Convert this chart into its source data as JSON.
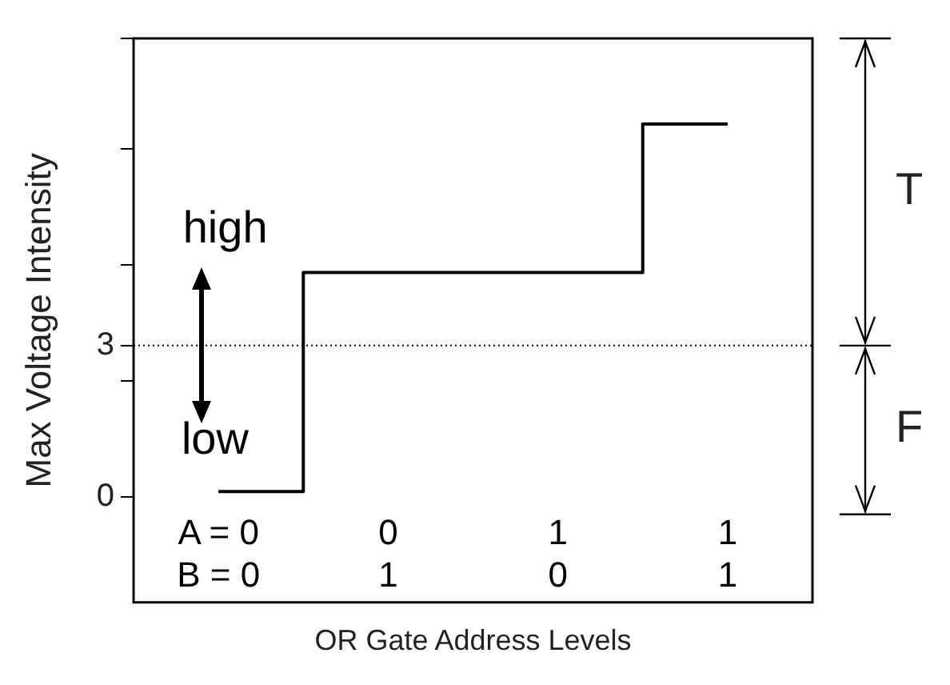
{
  "chart_data": {
    "type": "step",
    "xlabel": "OR Gate Address Levels",
    "ylabel": "Max Voltage Intensity",
    "categories": [
      "A = 0\nB = 0",
      "0\n1",
      "1\n0",
      "1\n1"
    ],
    "values": [
      0.1,
      4.45,
      4.45,
      7.4
    ],
    "color": "#000000",
    "ylim": [
      -2.1,
      9.1
    ],
    "yticks": [
      0,
      {
        "value": 2.3,
        "label": null
      },
      3,
      {
        "value": 4.6,
        "label": null
      },
      {
        "value": 6.9,
        "label": null
      },
      {
        "value": 9.1,
        "label": null
      }
    ],
    "ref_lines": [
      {
        "axis": "y",
        "value": 3,
        "line_style": "dotted",
        "color": "#000000"
      }
    ],
    "annotations": [
      "high",
      "low",
      "T",
      "F"
    ],
    "grid": false,
    "legend": false
  }
}
